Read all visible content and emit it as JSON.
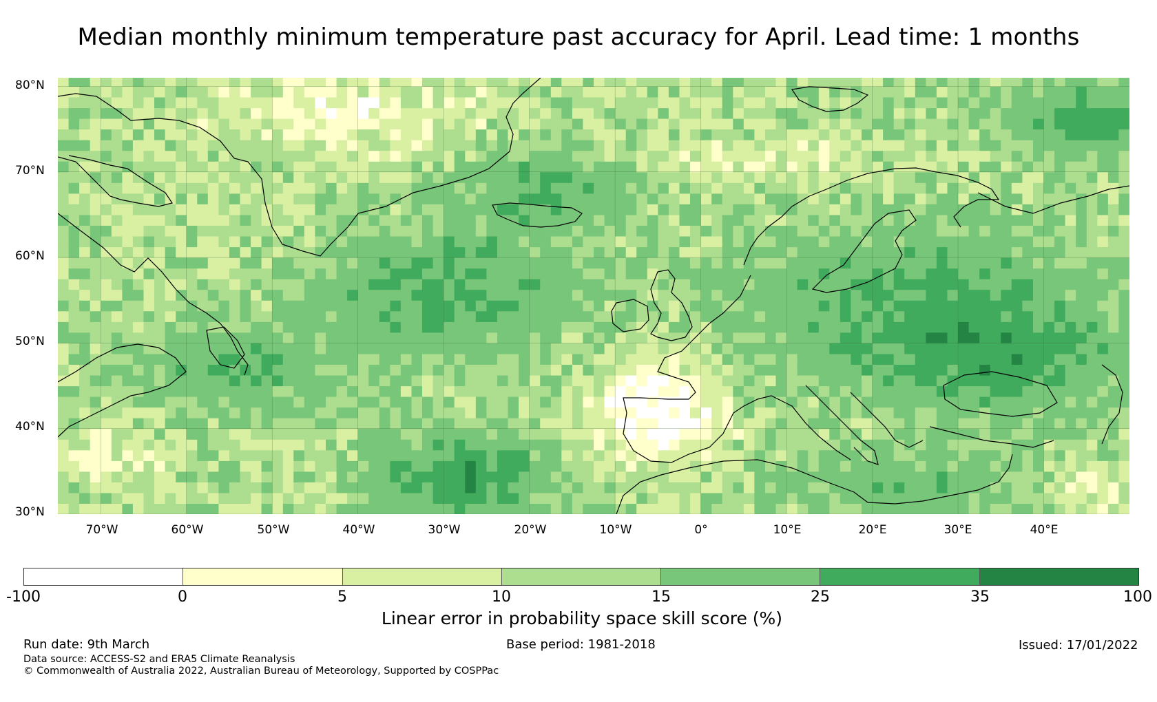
{
  "title": "Median monthly minimum temperature past accuracy for April. Lead time: 1 months",
  "map": {
    "region": "North Atlantic and Europe",
    "lat_labels": [
      "80°N",
      "70°N",
      "60°N",
      "50°N",
      "40°N",
      "30°N"
    ],
    "lon_labels": [
      "70°W",
      "60°W",
      "50°W",
      "40°W",
      "30°W",
      "20°W",
      "10°W",
      "0°",
      "10°E",
      "20°E",
      "30°E",
      "40°E"
    ],
    "extent": {
      "lon_min": -75,
      "lon_max": 50,
      "lat_min": 30,
      "lat_max": 81
    }
  },
  "colorbar": {
    "label": "Linear error in probability space skill score (%)",
    "ticks": [
      "-100",
      "0",
      "5",
      "10",
      "15",
      "25",
      "35",
      "100"
    ],
    "colors": [
      "#ffffff",
      "#ffffcc",
      "#d9f0a3",
      "#addd8e",
      "#78c679",
      "#41ab5d",
      "#238443"
    ]
  },
  "footer": {
    "run_date": "Run date: 9th March",
    "base_period": "Base period: 1981-2018",
    "issued": "Issued: 17/01/2022",
    "data_source": "Data source: ACCESS-S2 and ERA5 Climate Reanalysis",
    "copyright": "© Commonwealth of Australia 2022, Australian Bureau of Meteorology, Supported by COSPPac"
  }
}
